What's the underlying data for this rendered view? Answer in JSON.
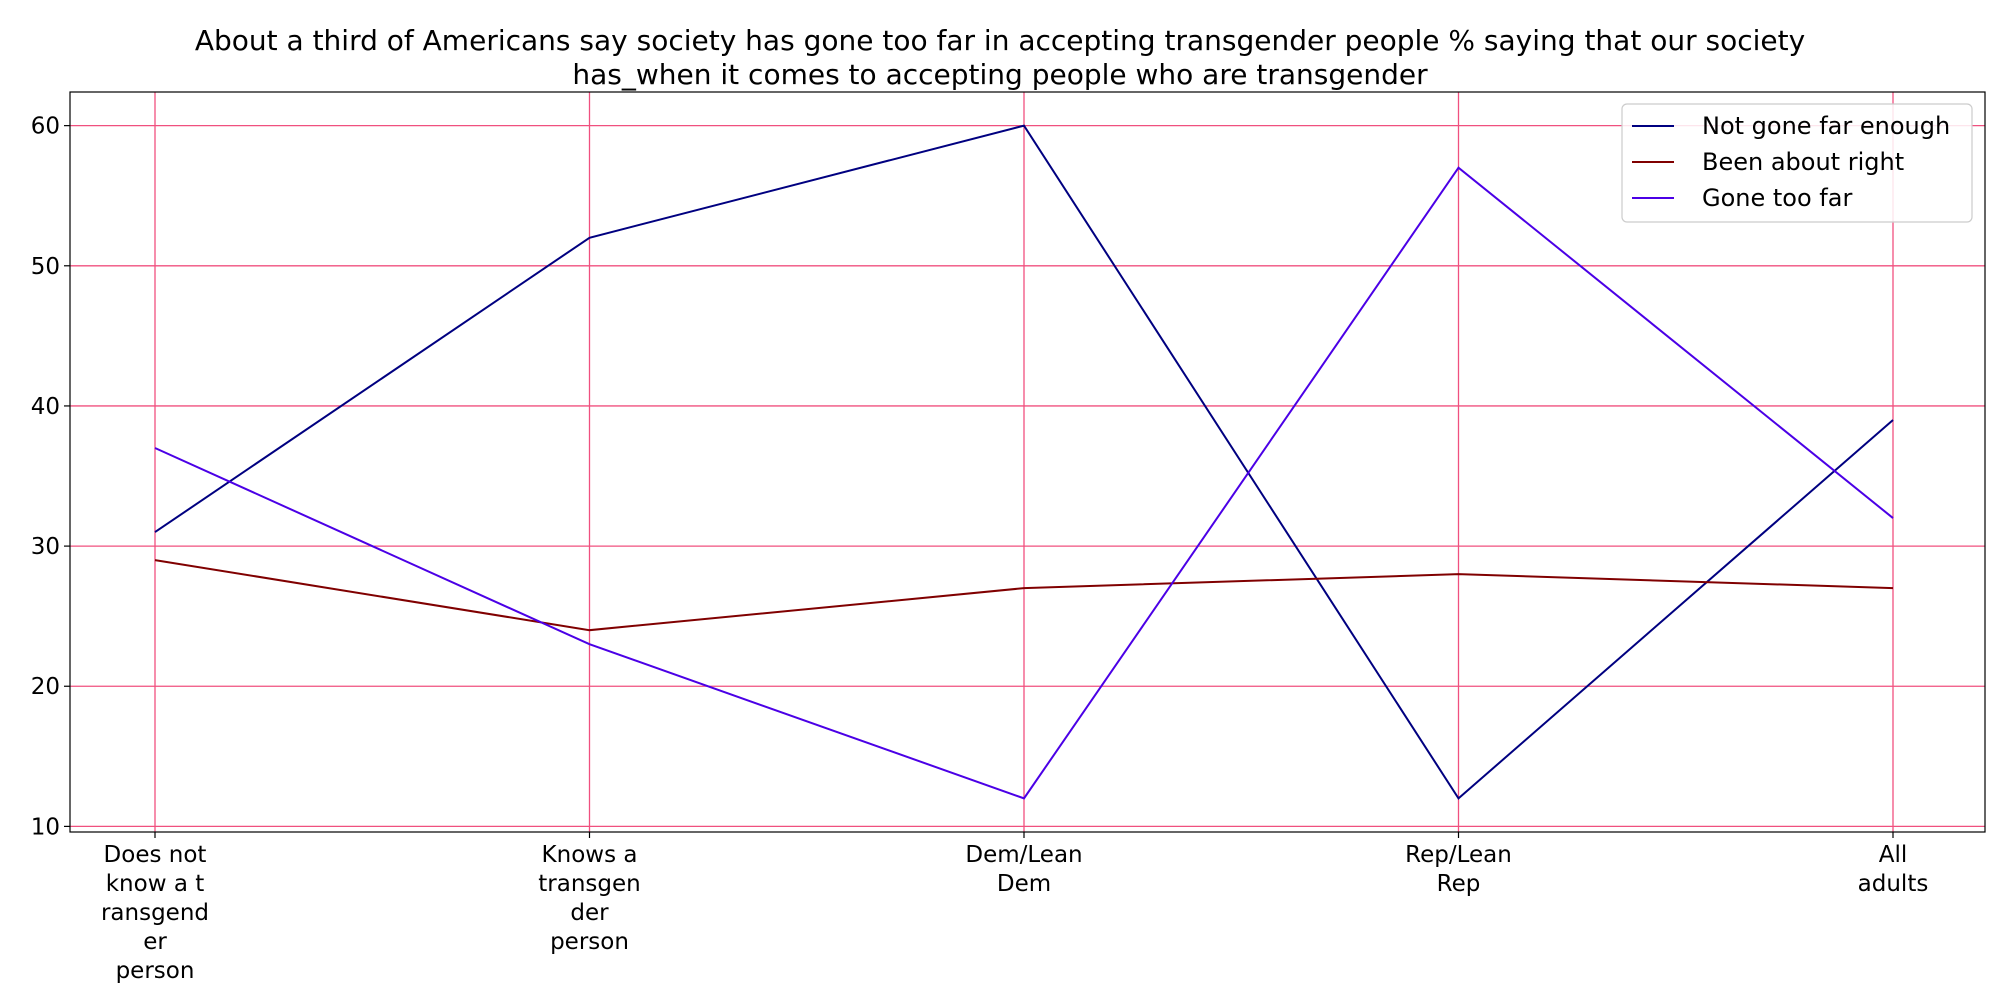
{
  "chart_data": {
    "type": "line",
    "title_lines": [
      "About a third of Americans say society has gone too far in accepting transgender people % saying that our society",
      "has_when it comes to accepting people who are transgender"
    ],
    "categories": [
      "Does not know a transgender person",
      "Knows a transgender person",
      "Dem/Lean Dem",
      "Rep/Lean Rep",
      "All adults"
    ],
    "category_label_lines": [
      [
        "Does not",
        "know a t",
        "ransgend",
        "er",
        "person"
      ],
      [
        "Knows a",
        "transgen",
        "der",
        "person"
      ],
      [
        "Dem/Lean",
        "Dem"
      ],
      [
        "Rep/Lean",
        "Rep"
      ],
      [
        "All",
        "adults"
      ]
    ],
    "series": [
      {
        "name": "Not gone far enough",
        "color": "#000080",
        "values": [
          31,
          52,
          60,
          12,
          39
        ]
      },
      {
        "name": "Been about right",
        "color": "#800000",
        "values": [
          29,
          24,
          27,
          28,
          27
        ]
      },
      {
        "name": "Gone too far",
        "color": "#4b00e6",
        "values": [
          37,
          23,
          12,
          57,
          32
        ]
      }
    ],
    "yticks": [
      10,
      20,
      30,
      40,
      50,
      60
    ],
    "ylim": [
      9.6,
      62.4
    ],
    "grid": true,
    "grid_color": "#f0507f",
    "legend_position": "top-right"
  }
}
